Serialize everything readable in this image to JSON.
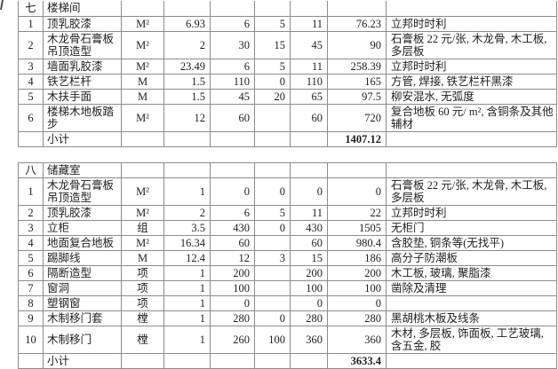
{
  "colors": {
    "border": "#8c8c8c",
    "text": "#1f1f1f",
    "background": "#ffffff"
  },
  "table": {
    "subtotal_label": "小计",
    "sections": [
      {
        "id": "section-7-stairwell",
        "rows": [
          [
            "七",
            "楼梯间",
            "",
            "",
            "",
            "",
            "",
            "",
            ""
          ],
          [
            "1",
            "顶乳胶漆",
            "M²",
            "6.93",
            "6",
            "5",
            "11",
            "76.23",
            "立邦时时利"
          ],
          [
            "2",
            "木龙骨石膏板吊顶造型",
            "M²",
            "2",
            "30",
            "15",
            "45",
            "90",
            "石膏板 22 元/张, 木龙骨, 木工板, 多层板"
          ],
          [
            "3",
            "墙面乳胶漆",
            "M²",
            "23.49",
            "6",
            "5",
            "11",
            "258.39",
            "立邦时时利"
          ],
          [
            "4",
            "铁艺栏杆",
            "M",
            "1.5",
            "110",
            "0",
            "110",
            "165",
            "方管, 焊接, 铁艺栏杆黑漆"
          ],
          [
            "5",
            "木扶手面",
            "M",
            "1.5",
            "45",
            "20",
            "65",
            "97.5",
            "柳安混水, 无弧度"
          ],
          [
            "6",
            "楼梯木地板踏步",
            "M²",
            "12",
            "60",
            "",
            "60",
            "720",
            "复合地板 60 元/ m², 含铜条及其他辅材"
          ],
          [
            "",
            "小计",
            "",
            "",
            "",
            "",
            "",
            "1407.12",
            ""
          ]
        ]
      },
      {
        "id": "section-8-storage",
        "rows": [
          [
            "八",
            "储藏室",
            "",
            "",
            "",
            "",
            "",
            "",
            ""
          ],
          [
            "1",
            "木龙骨石膏板吊顶造型",
            "M²",
            "1",
            "0",
            "0",
            "0",
            "0",
            "石膏板 22 元/张, 木龙骨, 木工板, 多层板"
          ],
          [
            "2",
            "顶乳胶漆",
            "M²",
            "2",
            "6",
            "5",
            "11",
            "22",
            "立邦时时利"
          ],
          [
            "3",
            "立柜",
            "组",
            "3.5",
            "430",
            "0",
            "430",
            "1505",
            "无柜门"
          ],
          [
            "4",
            "地面复合地板",
            "M²",
            "16.34",
            "60",
            "",
            "60",
            "980.4",
            "含胶垫, 铜条等(无找平)"
          ],
          [
            "5",
            "踢脚线",
            "M",
            "12.4",
            "12",
            "3",
            "15",
            "186",
            "高分子防潮板"
          ],
          [
            "6",
            "隔断造型",
            "项",
            "1",
            "200",
            "",
            "200",
            "200",
            "木工板, 玻璃, 聚脂漆"
          ],
          [
            "7",
            "窗洞",
            "项",
            "1",
            "100",
            "",
            "100",
            "100",
            "凿除及清理"
          ],
          [
            "8",
            "塑钢窗",
            "项",
            "1",
            "0",
            "",
            "0",
            "0",
            ""
          ],
          [
            "9",
            "木制移门套",
            "樘",
            "1",
            "280",
            "0",
            "280",
            "280",
            "黑胡桃木板及线条"
          ],
          [
            "10",
            "木制移门",
            "樘",
            "1",
            "260",
            "100",
            "360",
            "360",
            "木材, 多层板, 饰面板, 工艺玻璃, 含五金, 胶"
          ],
          [
            "",
            "小计",
            "",
            "",
            "",
            "",
            "",
            "3633.4",
            ""
          ]
        ]
      }
    ]
  }
}
